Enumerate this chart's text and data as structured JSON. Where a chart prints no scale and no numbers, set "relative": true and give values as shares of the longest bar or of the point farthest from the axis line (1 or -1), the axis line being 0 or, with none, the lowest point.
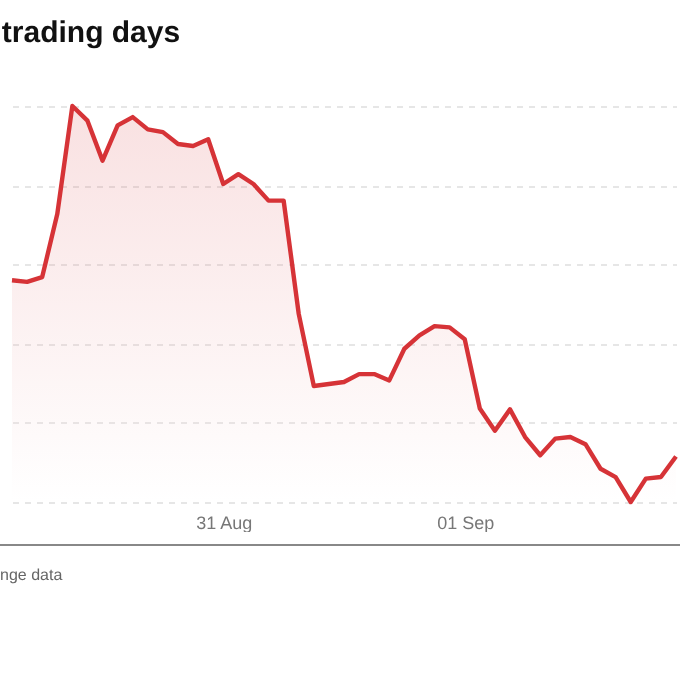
{
  "chart_data": {
    "type": "area",
    "title": "trading days",
    "relative": true,
    "grid": "y",
    "categories": [
      null,
      null,
      null,
      null,
      null,
      null,
      null,
      null,
      null,
      null,
      null,
      null,
      null,
      null,
      "31 Aug",
      null,
      null,
      null,
      null,
      null,
      null,
      null,
      null,
      null,
      null,
      null,
      null,
      null,
      null,
      null,
      "01 Sep",
      null,
      null,
      null,
      null,
      null,
      null,
      null,
      null,
      null,
      null,
      null,
      null,
      null,
      null
    ],
    "series": [
      {
        "color": "#d63337",
        "values": [
          0.56,
          0.556,
          0.568,
          0.727,
          1.0,
          0.963,
          0.862,
          0.951,
          0.972,
          0.941,
          0.934,
          0.904,
          0.899,
          0.916,
          0.803,
          0.828,
          0.803,
          0.761,
          0.761,
          0.475,
          0.293,
          0.298,
          0.303,
          0.323,
          0.323,
          0.307,
          0.387,
          0.421,
          0.444,
          0.441,
          0.411,
          0.236,
          0.18,
          0.234,
          0.164,
          0.118,
          0.16,
          0.164,
          0.146,
          0.084,
          0.063,
          0,
          0.059,
          0.063,
          0.115
        ]
      }
    ],
    "annotations": [
      "nge data"
    ]
  }
}
